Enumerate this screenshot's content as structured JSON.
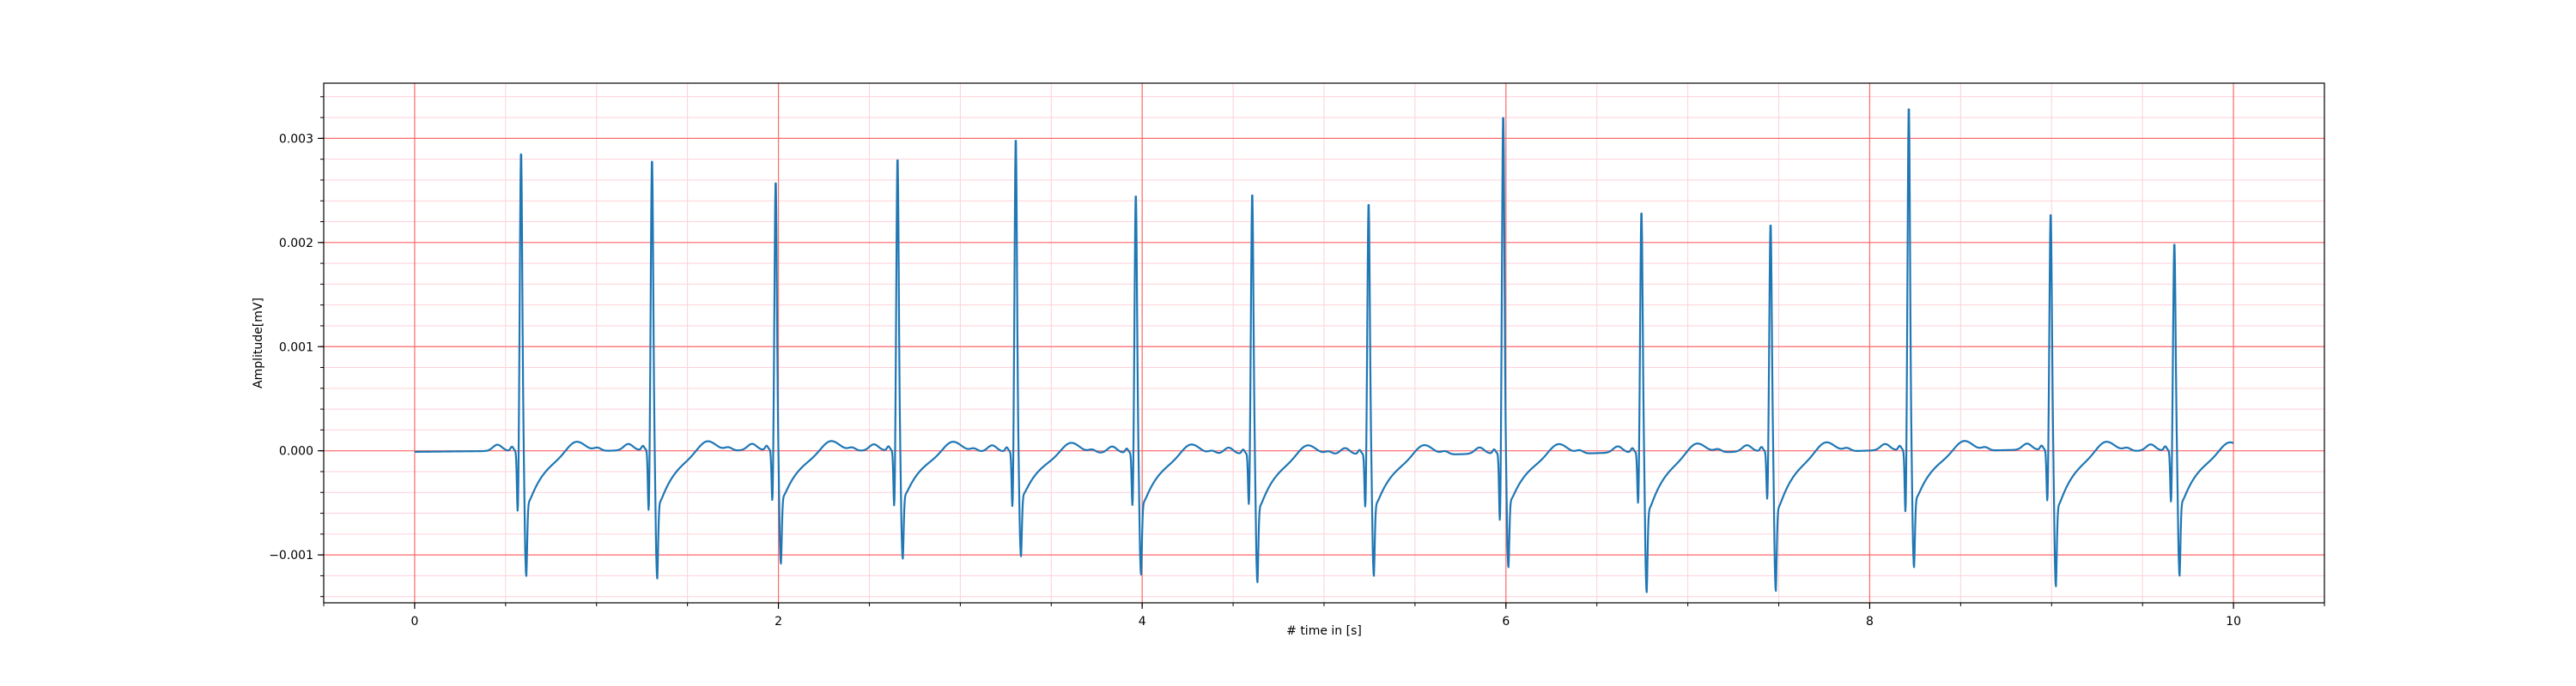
{
  "chart_data": {
    "type": "line",
    "title": "",
    "xlabel": "# time in [s]",
    "ylabel": "Amplitude[mV]",
    "xlim": [
      -0.5,
      10.5
    ],
    "ylim": [
      -0.00146,
      0.00353
    ],
    "x_ticks": [
      0,
      2,
      4,
      6,
      8,
      10
    ],
    "x_tick_labels": [
      "0",
      "2",
      "4",
      "6",
      "8",
      "10"
    ],
    "y_ticks": [
      -0.001,
      0.0,
      0.001,
      0.002,
      0.003
    ],
    "y_tick_labels": [
      "−0.001",
      "0.000",
      "0.001",
      "0.002",
      "0.003"
    ],
    "x_minor_step": 0.5,
    "y_minor_step": 0.0002,
    "grid": true,
    "grid_major_color": "#ff6b6b",
    "grid_minor_color": "#ffd0d8",
    "line_color": "#1f77b4",
    "series": [
      {
        "beats": [
          {
            "t": 0.585,
            "r": 0.00288,
            "q": -0.00063,
            "s": -0.0011
          },
          {
            "t": 1.305,
            "r": 0.0028,
            "q": -0.00063,
            "s": -0.00113
          },
          {
            "t": 1.985,
            "r": 0.00259,
            "q": -0.00053,
            "s": -0.001
          },
          {
            "t": 2.655,
            "r": 0.00282,
            "q": -0.00058,
            "s": -0.00095
          },
          {
            "t": 3.305,
            "r": 0.00302,
            "q": -0.00058,
            "s": -0.00092
          },
          {
            "t": 3.965,
            "r": 0.00249,
            "q": -0.00055,
            "s": -0.00107
          },
          {
            "t": 4.605,
            "r": 0.00251,
            "q": -0.00053,
            "s": -0.00113
          },
          {
            "t": 5.245,
            "r": 0.00242,
            "q": -0.00055,
            "s": -0.00107
          },
          {
            "t": 5.985,
            "r": 0.00326,
            "q": -0.0007,
            "s": -0.001
          },
          {
            "t": 6.745,
            "r": 0.00232,
            "q": -0.00053,
            "s": -0.00123
          },
          {
            "t": 7.455,
            "r": 0.00219,
            "q": -0.0005,
            "s": -0.00123
          },
          {
            "t": 8.215,
            "r": 0.00331,
            "q": -0.00065,
            "s": -0.00103
          },
          {
            "t": 8.995,
            "r": 0.00228,
            "q": -0.00053,
            "s": -0.0012
          },
          {
            "t": 9.675,
            "r": 0.002,
            "q": -0.00053,
            "s": -0.0011
          }
        ]
      }
    ]
  }
}
